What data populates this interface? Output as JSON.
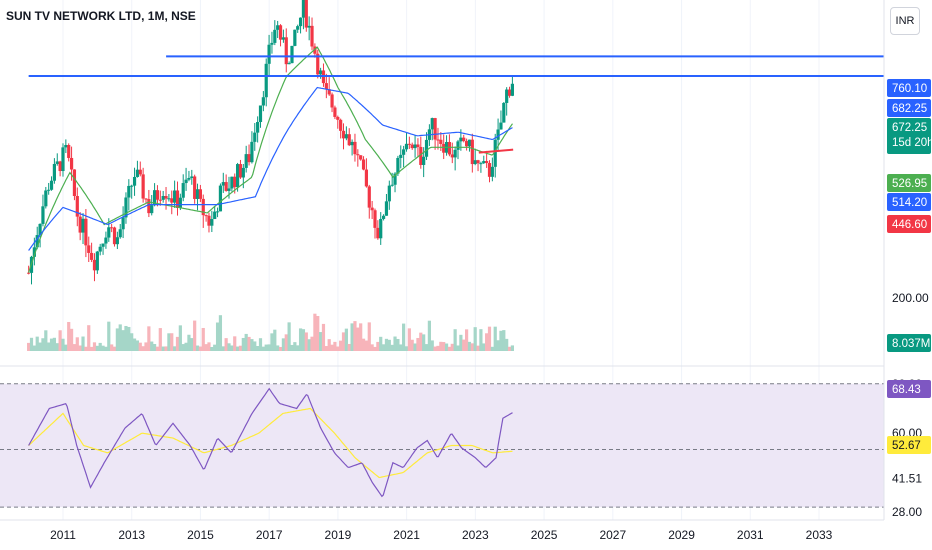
{
  "header": {
    "title": "SUN TV NETWORK LTD, 1M, NSE",
    "currency": "INR"
  },
  "price_axis": {
    "ticks": [
      "200.00"
    ],
    "labels": {
      "resistance1": {
        "value": "760.10",
        "color": "#2962ff"
      },
      "resistance2": {
        "value": "682.25",
        "color": "#2962ff"
      },
      "last_price": {
        "value": "672.25",
        "countdown": "15d 20h",
        "color": "#089981"
      },
      "ema_fast": {
        "value": "526.95",
        "color": "#4caf50"
      },
      "ema_slow": {
        "value": "514.20",
        "color": "#2962ff"
      },
      "support": {
        "value": "446.60",
        "color": "#f23645"
      },
      "volume": {
        "value": "8.037M",
        "color": "#089981"
      }
    }
  },
  "rsi_axis": {
    "ticks": [
      "80.00",
      "60.00",
      "53.35",
      "41.51",
      "28.00"
    ],
    "labels": {
      "rsi": {
        "value": "68.43",
        "color": "#7e57c2"
      },
      "rsi_ma": {
        "value": "52.67",
        "color": "#ffeb3b"
      }
    }
  },
  "time_axis": {
    "labels": [
      "2011",
      "2013",
      "2015",
      "2017",
      "2019",
      "2021",
      "2023",
      "2025",
      "2027",
      "2029",
      "2031",
      "2033"
    ]
  },
  "chart_data": {
    "type": "candlestick",
    "symbol": "SUN TV NETWORK LTD",
    "interval": "1M",
    "exchange": "NSE",
    "x_range": [
      2010.0,
      2035.0
    ],
    "price_range": [
      150,
      1010
    ],
    "price_scale": "log",
    "rsi_range": [
      26,
      86
    ],
    "start": 2010.0,
    "step": 0.0833,
    "keypoints": [
      [
        2010.0,
        230
      ],
      [
        2010.6,
        380
      ],
      [
        2011.1,
        450
      ],
      [
        2011.4,
        320
      ],
      [
        2011.9,
        245
      ],
      [
        2012.3,
        300
      ],
      [
        2012.6,
        275
      ],
      [
        2013.1,
        400
      ],
      [
        2013.5,
        330
      ],
      [
        2013.9,
        370
      ],
      [
        2014.3,
        340
      ],
      [
        2014.7,
        390
      ],
      [
        2015.0,
        330
      ],
      [
        2015.3,
        300
      ],
      [
        2015.6,
        360
      ],
      [
        2015.9,
        380
      ],
      [
        2016.4,
        430
      ],
      [
        2016.8,
        620
      ],
      [
        2017.2,
        920
      ],
      [
        2017.5,
        750
      ],
      [
        2017.7,
        800
      ],
      [
        2018.0,
        1000
      ],
      [
        2018.3,
        800
      ],
      [
        2018.6,
        620
      ],
      [
        2018.9,
        570
      ],
      [
        2019.1,
        520
      ],
      [
        2019.5,
        450
      ],
      [
        2019.8,
        370
      ],
      [
        2020.2,
        280
      ],
      [
        2020.5,
        380
      ],
      [
        2020.8,
        420
      ],
      [
        2021.1,
        480
      ],
      [
        2021.4,
        430
      ],
      [
        2021.7,
        520
      ],
      [
        2022.0,
        480
      ],
      [
        2022.4,
        440
      ],
      [
        2022.7,
        480
      ],
      [
        2023.0,
        420
      ],
      [
        2023.4,
        400
      ],
      [
        2023.7,
        500
      ],
      [
        2023.9,
        620
      ],
      [
        2024.1,
        672
      ]
    ],
    "ema_fast_keypoints": [
      [
        2010.0,
        230
      ],
      [
        2011.2,
        400
      ],
      [
        2012.2,
        300
      ],
      [
        2013.5,
        340
      ],
      [
        2015.2,
        320
      ],
      [
        2016.5,
        390
      ],
      [
        2017.5,
        680
      ],
      [
        2018.4,
        800
      ],
      [
        2019.0,
        640
      ],
      [
        2019.8,
        480
      ],
      [
        2020.6,
        390
      ],
      [
        2021.7,
        460
      ],
      [
        2022.8,
        460
      ],
      [
        2023.5,
        440
      ],
      [
        2024.1,
        527
      ]
    ],
    "ema_slow_keypoints": [
      [
        2010.0,
        260
      ],
      [
        2011.0,
        330
      ],
      [
        2012.3,
        300
      ],
      [
        2013.5,
        335
      ],
      [
        2015.5,
        335
      ],
      [
        2016.6,
        350
      ],
      [
        2017.5,
        500
      ],
      [
        2018.4,
        640
      ],
      [
        2019.3,
        620
      ],
      [
        2020.3,
        520
      ],
      [
        2021.3,
        490
      ],
      [
        2022.5,
        500
      ],
      [
        2023.5,
        480
      ],
      [
        2024.1,
        514
      ]
    ],
    "resistance_levels": [
      {
        "price": 760.1,
        "from": 2014.0
      },
      {
        "price": 682.25,
        "from": 2010.0
      }
    ],
    "support_segment": {
      "price": 446.6,
      "from": 2023.1,
      "to": 2024.1
    },
    "rsi_keypoints": [
      [
        2010.0,
        55
      ],
      [
        2010.6,
        70
      ],
      [
        2011.1,
        72
      ],
      [
        2011.4,
        55
      ],
      [
        2011.8,
        38
      ],
      [
        2012.2,
        48
      ],
      [
        2012.8,
        62
      ],
      [
        2013.3,
        68
      ],
      [
        2013.7,
        55
      ],
      [
        2014.2,
        64
      ],
      [
        2014.7,
        55
      ],
      [
        2015.1,
        45
      ],
      [
        2015.5,
        58
      ],
      [
        2015.9,
        52
      ],
      [
        2016.5,
        68
      ],
      [
        2017.0,
        78
      ],
      [
        2017.3,
        72
      ],
      [
        2017.8,
        70
      ],
      [
        2018.1,
        76
      ],
      [
        2018.5,
        62
      ],
      [
        2018.9,
        52
      ],
      [
        2019.3,
        46
      ],
      [
        2019.7,
        48
      ],
      [
        2020.0,
        40
      ],
      [
        2020.3,
        34
      ],
      [
        2020.6,
        48
      ],
      [
        2020.9,
        46
      ],
      [
        2021.3,
        54
      ],
      [
        2021.6,
        57
      ],
      [
        2021.9,
        50
      ],
      [
        2022.3,
        60
      ],
      [
        2022.6,
        54
      ],
      [
        2023.0,
        50
      ],
      [
        2023.3,
        46
      ],
      [
        2023.6,
        50
      ],
      [
        2023.8,
        66
      ],
      [
        2024.1,
        68.43
      ]
    ],
    "rsi_ma_keypoints": [
      [
        2010.0,
        55
      ],
      [
        2011.0,
        68
      ],
      [
        2011.6,
        55
      ],
      [
        2012.3,
        52
      ],
      [
        2013.3,
        60
      ],
      [
        2014.2,
        58
      ],
      [
        2015.1,
        52
      ],
      [
        2015.9,
        55
      ],
      [
        2016.7,
        60
      ],
      [
        2017.4,
        68
      ],
      [
        2018.2,
        70
      ],
      [
        2018.9,
        60
      ],
      [
        2019.5,
        50
      ],
      [
        2020.2,
        42
      ],
      [
        2020.9,
        44
      ],
      [
        2021.6,
        52
      ],
      [
        2022.3,
        55
      ],
      [
        2022.9,
        55
      ],
      [
        2023.5,
        52
      ],
      [
        2024.1,
        52.67
      ]
    ]
  },
  "colors": {
    "up": "#089981",
    "down": "#f23645",
    "ema_fast": "#4caf50",
    "ema_slow": "#2962ff",
    "resistance": "#2962ff",
    "rsi": "#7e57c2",
    "rsi_ma": "#ffeb3b",
    "rsi_band": "#ede7f6",
    "grid": "#f0f3fa",
    "axis_text": "#131722"
  }
}
